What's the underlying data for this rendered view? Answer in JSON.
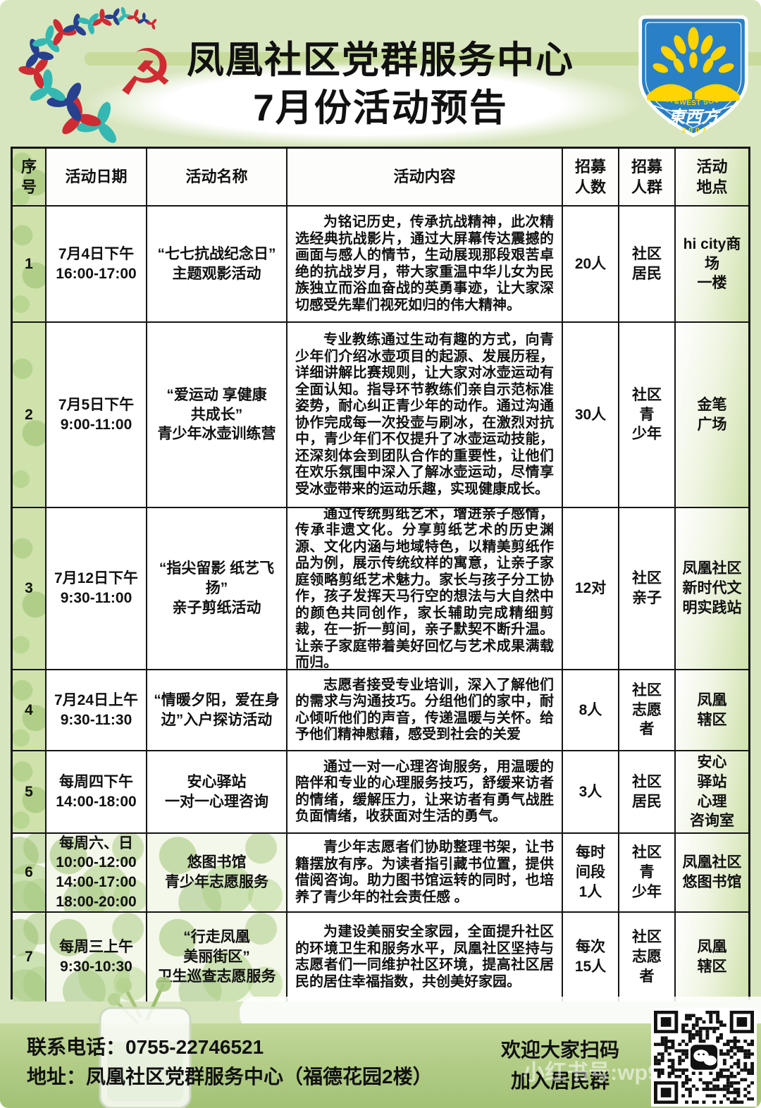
{
  "header": {
    "title_line1": "凤凰社区党群服务中心",
    "title_line2": "7月份活动预告",
    "logo": {
      "icon": "party-emblem-swirl",
      "emblem_glyph": "☭"
    },
    "badge": {
      "arc_text": "EAST&WEST SOCIAL WORK",
      "name": "東西方",
      "year": "2007"
    }
  },
  "table": {
    "columns": [
      "序\n号",
      "活动日期",
      "活动名称",
      "活动内容",
      "招募\n人数",
      "招募\n人群",
      "活动\n地点"
    ],
    "rows": [
      {
        "num": "1",
        "date": "7月4日下午\n16:00-17:00",
        "name": "“七七抗战纪念日”\n主题观影活动",
        "content": "为铭记历史，传承抗战精神，此次精选经典抗战影片，通过大屏幕传达震撼的画面与感人的情节，生动展现那段艰苦卓绝的抗战岁月，带大家重温中华儿女为民族独立而浴血奋战的英勇事迹，让大家深切感受先辈们视死如归的伟大精神。",
        "count": "20人",
        "group": "社区\n居民",
        "place": "hi city商\n场\n一楼"
      },
      {
        "num": "2",
        "date": "7月5日下午\n9:00-11:00",
        "name": "“爱运动 享健康\n共成长”\n青少年冰壶训练营",
        "content": "专业教练通过生动有趣的方式，向青少年们介绍冰壶项目的起源、发展历程，详细讲解比赛规则，让大家对冰壶运动有全面认知。指导环节教练们亲自示范标准姿势，耐心纠正青少年的动作。通过沟通协作完成每一次投壶与刷冰，在激烈对抗中，青少年们不仅提升了冰壶运动技能，还深刻体会到团队合作的重要性，让他们在欢乐氛围中深入了解冰壶运动，尽情享受冰壶带来的运动乐趣，实现健康成长。",
        "count": "30人",
        "group": "社区\n青\n少年",
        "place": "金笔\n广场"
      },
      {
        "num": "3",
        "date": "7月12日下午\n9:30-11:00",
        "name": "“指尖留影 纸艺飞扬”\n亲子剪纸活动",
        "content": "通过传统剪纸艺术，增进亲子感情，传承非遗文化。分享剪纸艺术的历史渊源、文化内涵与地域特色，以精美剪纸作品为例，展示传统纹样的寓意，让亲子家庭领略剪纸艺术魅力。家长与孩子分工协作，孩子发挥天马行空的想法与大自然中的颜色共同创作，家长辅助完成精细剪裁，在一折一剪间，亲子默契不断升温。让亲子家庭带着美好回忆与艺术成果满载而归。",
        "count": "12对",
        "group": "社区\n亲子",
        "place": "凤凰社区\n新时代文\n明实践站"
      },
      {
        "num": "4",
        "date": "7月24日上午\n9:30-11:30",
        "name": "“情暖夕阳，爱在身\n边”入户探访活动",
        "content": "志愿者接受专业培训，深入了解他们的需求与沟通技巧。分组他们的家中，耐心倾听他们的声音，传递温暖与关怀。给予他们精神慰藉，感受到社会的关爱",
        "count": "8人",
        "group": "社区\n志愿\n者",
        "place": "凤凰\n辖区"
      },
      {
        "num": "5",
        "date": "每周四下午\n14:00-18:00",
        "name": "安心驿站\n一对一心理咨询",
        "content": "通过一对一心理咨询服务，用温暖的陪伴和专业的心理服务技巧，舒缓来访者的情绪，缓解压力，让来访者有勇气战胜负面情绪，收获面对生活的勇气。",
        "count": "3人",
        "group": "社区\n居民",
        "place": "安心\n驿站\n心理\n咨询室"
      },
      {
        "num": "6",
        "date": "每周六、日\n10:00-12:00\n14:00-17:00\n18:00-20:00",
        "name": "悠图书馆\n青少年志愿服务",
        "content": "青少年志愿者们协助整理书架，让书籍摆放有序。为读者指引藏书位置，提供借阅咨询。助力图书馆运转的同时，也培养了青少年的社会责任感 。",
        "count": "每时\n间段\n1人",
        "group": "社区\n青\n少年",
        "place": "凤凰社区\n悠图书馆"
      },
      {
        "num": "7",
        "date": "每周三上午\n9:30-10:30",
        "name": "“行走凤凰\n美丽街区”\n卫生巡查志愿服务",
        "content": "为建设美丽安全家园，全面提升社区的环境卫生和服务水平，凤凰社区坚持与志愿者们一同维护社区环境，提高社区居民的居住幸福指数，共创美好家园。",
        "count": "每次\n15人",
        "group": "社区\n志愿\n者",
        "place": "凤凰\n辖区"
      }
    ]
  },
  "footer": {
    "phone": "联系电话：0755-22746521",
    "address": "地址：凤凰社区党群服务中心（福德花园2楼）",
    "scan_text": "欢迎大家扫码\n加入居民群",
    "watermark": "小红书号:wp94",
    "qr": "wechat-group-qr-code"
  },
  "colors": {
    "background": "#d8e6bf",
    "olive_band": "#c6db9a",
    "footer_band": "#aecb83",
    "badge_blue": "#2a80c5",
    "badge_yellow": "#ffd400",
    "emblem_red": "#cf2b33",
    "logo_navy": "#27418f",
    "logo_teal": "#35b8b2",
    "text": "#111111"
  }
}
